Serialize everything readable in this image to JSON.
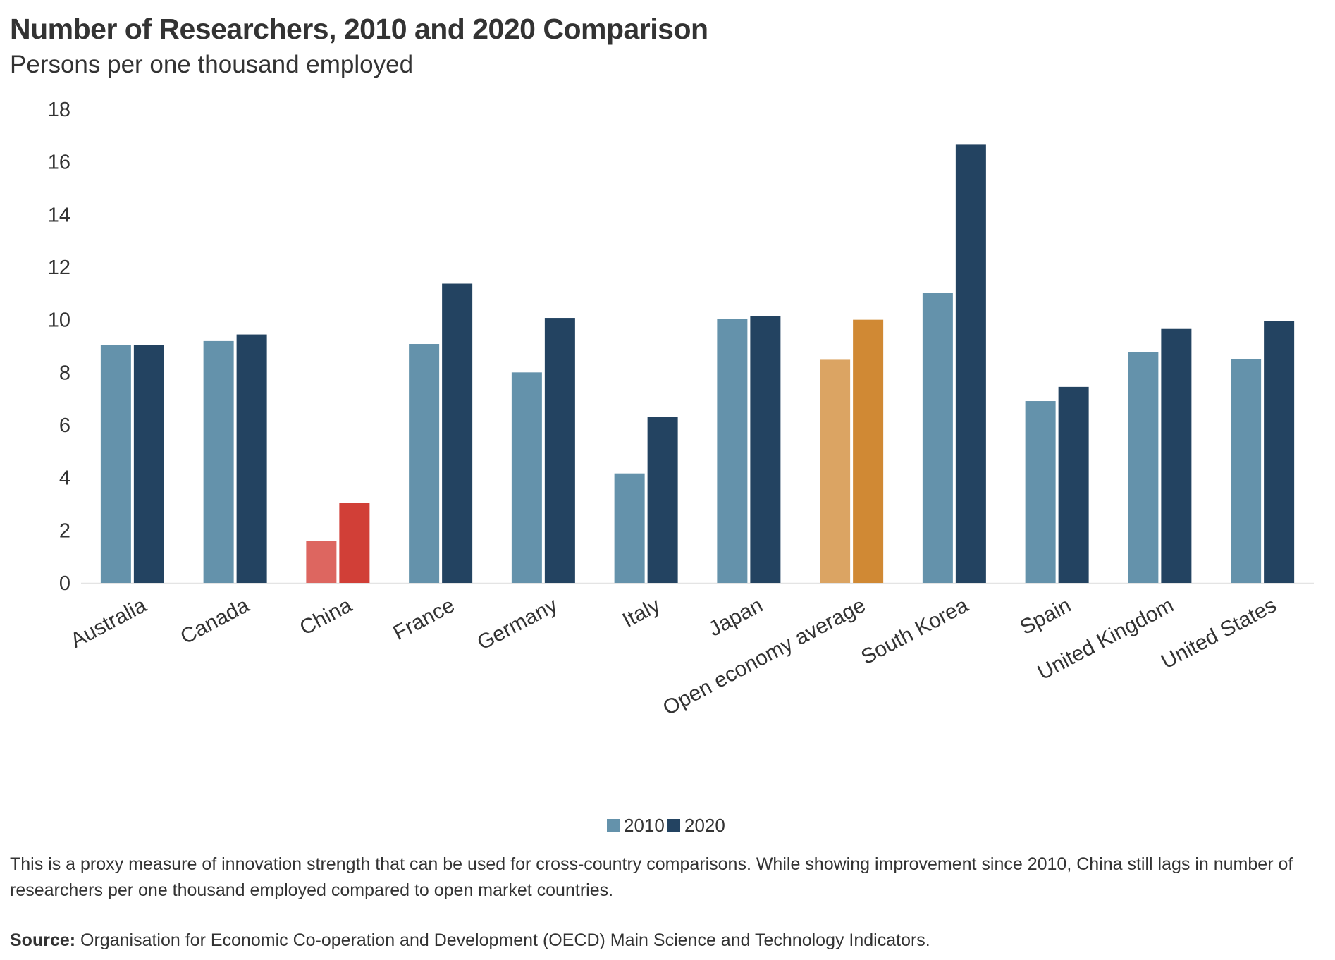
{
  "chart_data": {
    "type": "bar",
    "title": "Number of Researchers, 2010 and 2020 Comparison",
    "subtitle": "Persons per one thousand employed",
    "xlabel": "",
    "ylabel": "",
    "ylim": [
      0,
      18
    ],
    "yticks": [
      "0",
      "2",
      "4",
      "6",
      "8",
      "10",
      "12",
      "14",
      "16",
      "18"
    ],
    "grid": false,
    "legend_position": "bottom",
    "categories": [
      "Australia",
      "Canada",
      "China",
      "France",
      "Germany",
      "Italy",
      "Japan",
      "Open economy average",
      "South Korea",
      "Spain",
      "United Kingdom",
      "United States"
    ],
    "series": [
      {
        "name": "2010",
        "color": "#6492ab",
        "values": [
          9.05,
          9.19,
          1.59,
          9.08,
          8.0,
          4.16,
          10.04,
          8.48,
          11.01,
          6.91,
          8.78,
          8.5
        ]
      },
      {
        "name": "2020",
        "color": "#234361",
        "values": [
          9.05,
          9.44,
          3.04,
          11.37,
          10.07,
          6.3,
          10.13,
          10.0,
          16.65,
          7.45,
          9.65,
          9.95
        ]
      }
    ],
    "highlight_colors": {
      "China": [
        "#dd6660",
        "#d13f37"
      ],
      "Open economy average": [
        "#dba463",
        "#d08934"
      ]
    }
  },
  "note": "This is a proxy measure of innovation strength that can be used for cross-country comparisons. While showing improvement since 2010, China still lags in number of researchers per one thousand employed compared to open market countries.",
  "source": {
    "label": "Source:",
    "text": " Organisation for Economic Co-operation and Development (OECD) Main Science and Technology Indicators."
  }
}
